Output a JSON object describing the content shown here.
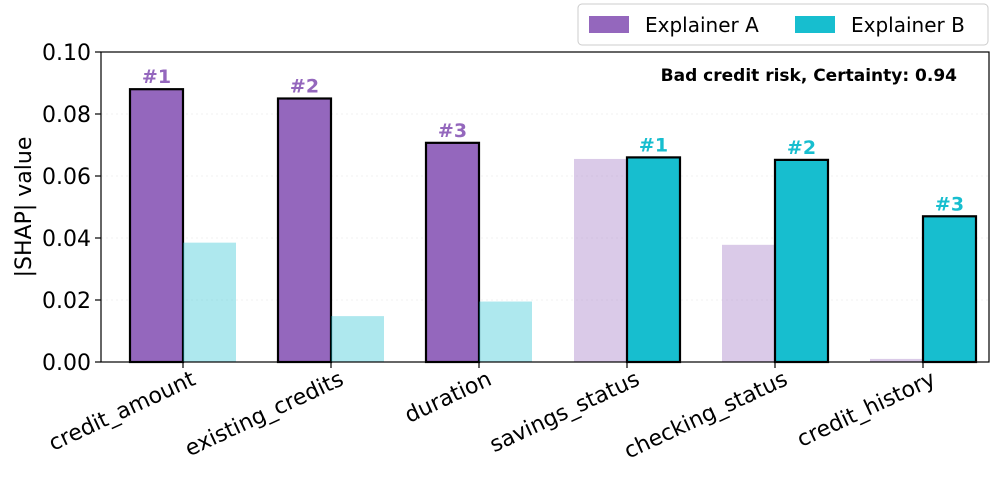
{
  "chart_data": {
    "type": "bar",
    "categories": [
      "credit_amount",
      "existing_credits",
      "duration",
      "savings_status",
      "checking_status",
      "credit_history"
    ],
    "series": [
      {
        "name": "Explainer A",
        "color": "#9467bd",
        "values": [
          0.088,
          0.085,
          0.0707,
          0.0655,
          0.0378,
          0.001
        ],
        "highlighted": [
          true,
          true,
          true,
          false,
          false,
          false
        ],
        "ranks": [
          "#1",
          "#2",
          "#3",
          "",
          "",
          ""
        ]
      },
      {
        "name": "Explainer B",
        "color": "#17becf",
        "values": [
          0.0385,
          0.0148,
          0.0195,
          0.066,
          0.0652,
          0.047
        ],
        "highlighted": [
          false,
          false,
          false,
          true,
          true,
          true
        ],
        "ranks": [
          "",
          "",
          "",
          "#1",
          "#2",
          "#3"
        ]
      }
    ],
    "title": "",
    "annotation": "Bad credit risk, Certainty: 0.94",
    "xlabel": "",
    "ylabel": "|SHAP| value",
    "ylim": [
      0,
      0.1
    ],
    "yticks": [
      "0.00",
      "0.02",
      "0.04",
      "0.06",
      "0.08",
      "0.10"
    ],
    "legend": {
      "position": "top-right-outside",
      "entries": [
        "Explainer A",
        "Explainer B"
      ]
    }
  }
}
